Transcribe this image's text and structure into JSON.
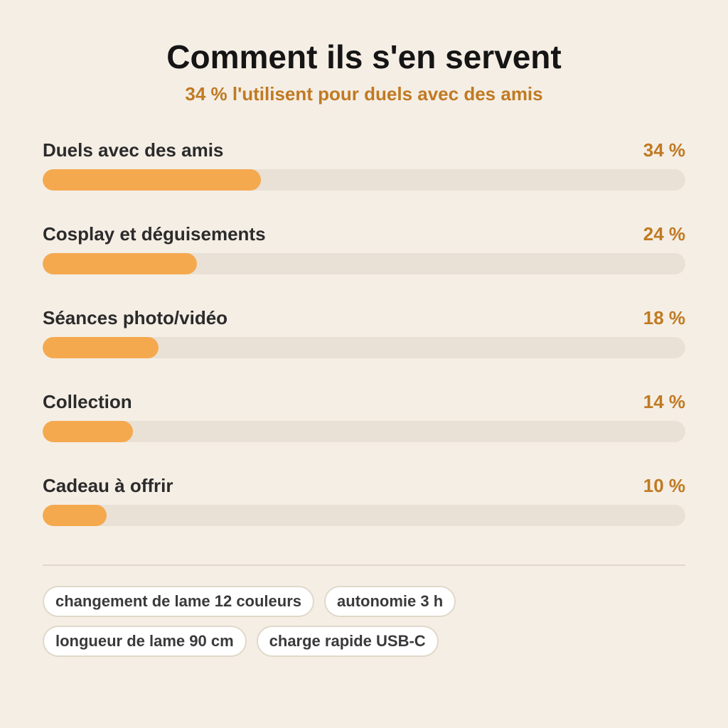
{
  "colors": {
    "background": "#f5eee5",
    "accent": "#c07a22",
    "bar_fill": "#f5a94f",
    "bar_track": "#e9e1d6"
  },
  "chart_data": {
    "type": "bar",
    "orientation": "horizontal",
    "title": "Comment ils s'en servent",
    "subtitle": "34 % l'utilisent pour duels avec des amis",
    "categories": [
      "Duels avec des amis",
      "Cosplay et déguisements",
      "Séances photo/vidéo",
      "Collection",
      "Cadeau à offrir"
    ],
    "values": [
      34,
      24,
      18,
      14,
      10
    ],
    "value_labels": [
      "34 %",
      "24 %",
      "18 %",
      "14 %",
      "10 %"
    ],
    "unit": "%",
    "xlim": [
      0,
      100
    ],
    "grid": false
  },
  "tags": [
    [
      "changement de lame 12 couleurs",
      "autonomie 3 h"
    ],
    [
      "longueur de lame 90 cm",
      "charge rapide USB-C"
    ]
  ]
}
